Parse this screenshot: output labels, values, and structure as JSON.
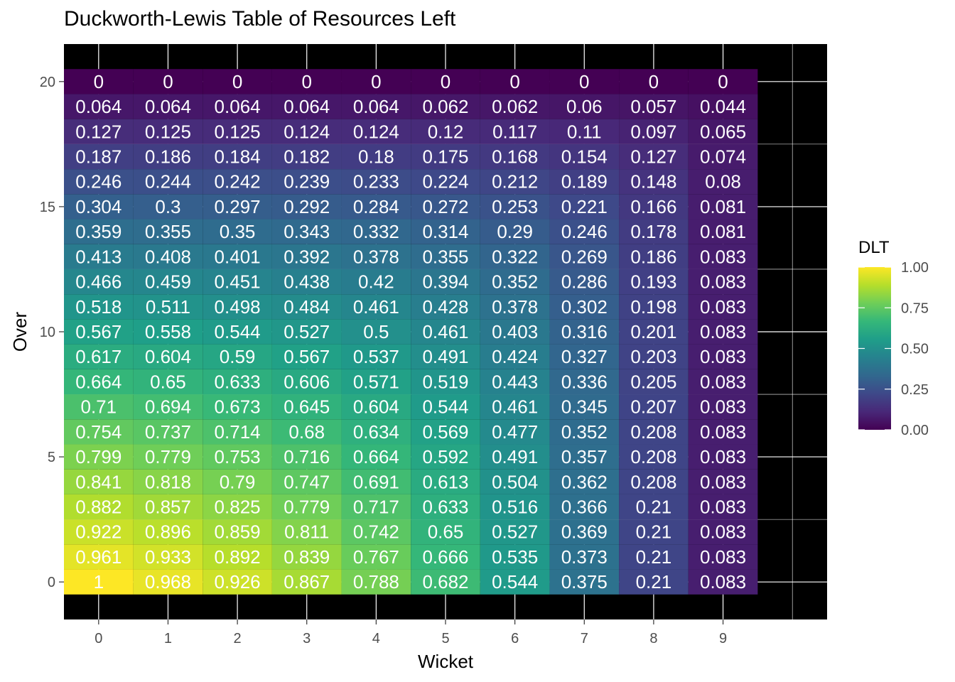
{
  "chart_data": {
    "type": "heatmap",
    "title": "Duckworth-Lewis Table of Resources Left",
    "xlabel": "Wicket",
    "ylabel": "Over",
    "x_categories": [
      0,
      1,
      2,
      3,
      4,
      5,
      6,
      7,
      8,
      9
    ],
    "y_categories": [
      0,
      1,
      2,
      3,
      4,
      5,
      6,
      7,
      8,
      9,
      10,
      11,
      12,
      13,
      14,
      15,
      16,
      17,
      18,
      19,
      20
    ],
    "x_ticks": [
      "0",
      "1",
      "2",
      "3",
      "4",
      "5",
      "6",
      "7",
      "8",
      "9"
    ],
    "y_ticks": [
      "0",
      "5",
      "10",
      "15",
      "20"
    ],
    "xlim": [
      -0.5,
      10.5
    ],
    "ylim": [
      -1.5,
      21.5
    ],
    "values": [
      [
        "1",
        "0.968",
        "0.926",
        "0.867",
        "0.788",
        "0.682",
        "0.544",
        "0.375",
        "0.21",
        "0.083"
      ],
      [
        "0.961",
        "0.933",
        "0.892",
        "0.839",
        "0.767",
        "0.666",
        "0.535",
        "0.373",
        "0.21",
        "0.083"
      ],
      [
        "0.922",
        "0.896",
        "0.859",
        "0.811",
        "0.742",
        "0.65",
        "0.527",
        "0.369",
        "0.21",
        "0.083"
      ],
      [
        "0.882",
        "0.857",
        "0.825",
        "0.779",
        "0.717",
        "0.633",
        "0.516",
        "0.366",
        "0.21",
        "0.083"
      ],
      [
        "0.841",
        "0.818",
        "0.79",
        "0.747",
        "0.691",
        "0.613",
        "0.504",
        "0.362",
        "0.208",
        "0.083"
      ],
      [
        "0.799",
        "0.779",
        "0.753",
        "0.716",
        "0.664",
        "0.592",
        "0.491",
        "0.357",
        "0.208",
        "0.083"
      ],
      [
        "0.754",
        "0.737",
        "0.714",
        "0.68",
        "0.634",
        "0.569",
        "0.477",
        "0.352",
        "0.208",
        "0.083"
      ],
      [
        "0.71",
        "0.694",
        "0.673",
        "0.645",
        "0.604",
        "0.544",
        "0.461",
        "0.345",
        "0.207",
        "0.083"
      ],
      [
        "0.664",
        "0.65",
        "0.633",
        "0.606",
        "0.571",
        "0.519",
        "0.443",
        "0.336",
        "0.205",
        "0.083"
      ],
      [
        "0.617",
        "0.604",
        "0.59",
        "0.567",
        "0.537",
        "0.491",
        "0.424",
        "0.327",
        "0.203",
        "0.083"
      ],
      [
        "0.567",
        "0.558",
        "0.544",
        "0.527",
        "0.5",
        "0.461",
        "0.403",
        "0.316",
        "0.201",
        "0.083"
      ],
      [
        "0.518",
        "0.511",
        "0.498",
        "0.484",
        "0.461",
        "0.428",
        "0.378",
        "0.302",
        "0.198",
        "0.083"
      ],
      [
        "0.466",
        "0.459",
        "0.451",
        "0.438",
        "0.42",
        "0.394",
        "0.352",
        "0.286",
        "0.193",
        "0.083"
      ],
      [
        "0.413",
        "0.408",
        "0.401",
        "0.392",
        "0.378",
        "0.355",
        "0.322",
        "0.269",
        "0.186",
        "0.083"
      ],
      [
        "0.359",
        "0.355",
        "0.35",
        "0.343",
        "0.332",
        "0.314",
        "0.29",
        "0.246",
        "0.178",
        "0.081"
      ],
      [
        "0.304",
        "0.3",
        "0.297",
        "0.292",
        "0.284",
        "0.272",
        "0.253",
        "0.221",
        "0.166",
        "0.081"
      ],
      [
        "0.246",
        "0.244",
        "0.242",
        "0.239",
        "0.233",
        "0.224",
        "0.212",
        "0.189",
        "0.148",
        "0.08"
      ],
      [
        "0.187",
        "0.186",
        "0.184",
        "0.182",
        "0.18",
        "0.175",
        "0.168",
        "0.154",
        "0.127",
        "0.074"
      ],
      [
        "0.127",
        "0.125",
        "0.125",
        "0.124",
        "0.124",
        "0.12",
        "0.117",
        "0.11",
        "0.097",
        "0.065"
      ],
      [
        "0.064",
        "0.064",
        "0.064",
        "0.064",
        "0.064",
        "0.062",
        "0.062",
        "0.06",
        "0.057",
        "0.044"
      ],
      [
        "0",
        "0",
        "0",
        "0",
        "0",
        "0",
        "0",
        "0",
        "0",
        "0"
      ]
    ],
    "colorscale": "viridis",
    "legend": {
      "title": "DLT",
      "labels": [
        "1.00",
        "0.75",
        "0.50",
        "0.25",
        "0.00"
      ],
      "range": [
        0,
        1
      ],
      "placement": "right"
    },
    "panel_background": "#000000",
    "grid": true,
    "grid_color": "#ffffff",
    "cell_text_color": "#ffffff",
    "axis_text_color": "#4d4d4d"
  }
}
